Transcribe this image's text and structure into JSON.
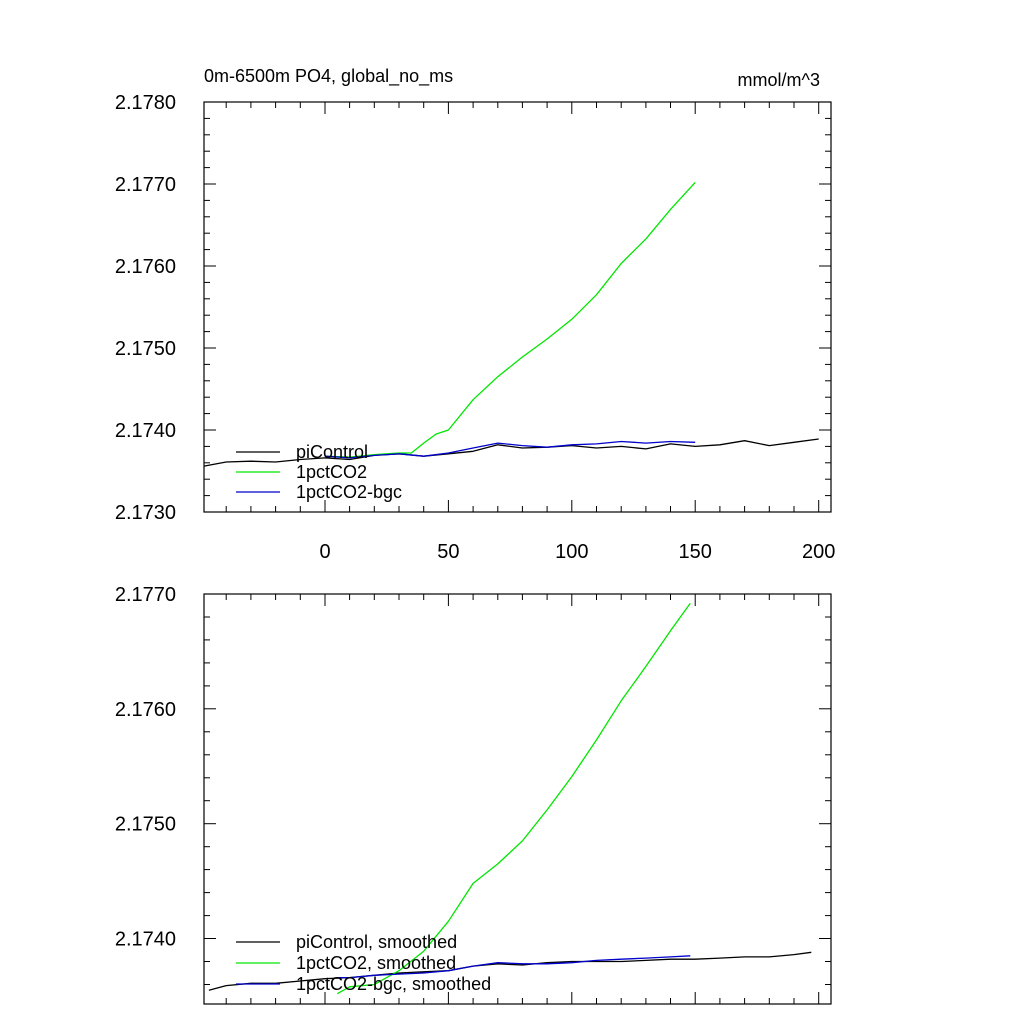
{
  "panels": [
    {
      "title_left": "0m-6500m PO4, global_no_ms",
      "title_right": "mmol/m^3",
      "chart_data": {
        "type": "line",
        "title": "0m-6500m PO4, global_no_ms",
        "units": "mmol/m^3",
        "xlim": [
          -49,
          205
        ],
        "ylim": [
          2.173,
          2.178
        ],
        "x_ticks": [
          0,
          50,
          100,
          150,
          200
        ],
        "x_tick_labels": [
          "0",
          "50",
          "100",
          "150",
          "200"
        ],
        "y_ticks": [
          2.173,
          2.174,
          2.175,
          2.176,
          2.177,
          2.178
        ],
        "y_tick_labels": [
          "2.1730",
          "2.1740",
          "2.1750",
          "2.1760",
          "2.1770",
          "2.1780"
        ],
        "grid": false,
        "legend_position": "lower-left",
        "series": [
          {
            "name": "piControl",
            "color": "#000000",
            "x": [
              -49,
              -40,
              -30,
              -20,
              -10,
              0,
              10,
              20,
              30,
              40,
              50,
              60,
              70,
              80,
              90,
              100,
              110,
              120,
              130,
              140,
              150,
              160,
              170,
              180,
              190,
              200
            ],
            "values": [
              2.17356,
              2.17361,
              2.17362,
              2.17361,
              2.17364,
              2.17366,
              2.17364,
              2.17369,
              2.17371,
              2.17368,
              2.17371,
              2.17374,
              2.17382,
              2.17378,
              2.17379,
              2.17381,
              2.17378,
              2.1738,
              2.17377,
              2.17383,
              2.1738,
              2.17382,
              2.17387,
              2.17381,
              2.17385,
              2.17389
            ]
          },
          {
            "name": "1pctCO2",
            "color": "#00e600",
            "x": [
              0,
              10,
              20,
              30,
              35,
              40,
              45,
              50,
              60,
              70,
              80,
              90,
              100,
              110,
              120,
              130,
              140,
              150
            ],
            "values": [
              2.17368,
              2.17367,
              2.1737,
              2.17372,
              2.17372,
              2.17384,
              2.17395,
              2.174,
              2.17437,
              2.17465,
              2.17489,
              2.17511,
              2.17535,
              2.17565,
              2.17603,
              2.17633,
              2.17669,
              2.17702
            ]
          },
          {
            "name": "1pctCO2-bgc",
            "color": "#0000cc",
            "x": [
              0,
              10,
              20,
              30,
              40,
              50,
              60,
              70,
              80,
              90,
              100,
              110,
              120,
              130,
              140,
              150
            ],
            "values": [
              2.17368,
              2.17366,
              2.17369,
              2.17371,
              2.17368,
              2.17372,
              2.17378,
              2.17384,
              2.17381,
              2.17379,
              2.17382,
              2.17383,
              2.17386,
              2.17384,
              2.17386,
              2.17385
            ]
          }
        ]
      }
    },
    {
      "title_left": "",
      "title_right": "",
      "chart_data": {
        "type": "line",
        "xlim": [
          -49,
          205
        ],
        "ylim": [
          2.17343,
          2.177
        ],
        "x_ticks": [
          0,
          50,
          100,
          150,
          200
        ],
        "x_tick_labels": [],
        "y_ticks": [
          2.174,
          2.175,
          2.176,
          2.177
        ],
        "y_tick_labels": [
          "2.1740",
          "2.1750",
          "2.1760",
          "2.1770"
        ],
        "grid": false,
        "legend_position": "lower-left",
        "series": [
          {
            "name": "piControl, smoothed",
            "color": "#000000",
            "x": [
              -47,
              -40,
              -30,
              -20,
              -10,
              0,
              10,
              20,
              30,
              40,
              50,
              60,
              70,
              80,
              90,
              100,
              110,
              120,
              130,
              140,
              150,
              160,
              170,
              180,
              190,
              197
            ],
            "values": [
              2.17355,
              2.17359,
              2.17361,
              2.17361,
              2.17363,
              2.17365,
              2.17366,
              2.17368,
              2.1737,
              2.17371,
              2.17372,
              2.17376,
              2.17378,
              2.17377,
              2.17379,
              2.1738,
              2.1738,
              2.1738,
              2.17381,
              2.17382,
              2.17382,
              2.17383,
              2.17384,
              2.17384,
              2.17386,
              2.17388
            ]
          },
          {
            "name": "1pctCO2, smoothed",
            "color": "#00e600",
            "x": [
              5,
              10,
              20,
              30,
              40,
              50,
              60,
              70,
              80,
              90,
              100,
              110,
              120,
              130,
              140,
              148
            ],
            "values": [
              2.17352,
              2.17358,
              2.1736,
              2.17372,
              2.17389,
              2.17415,
              2.17448,
              2.17465,
              2.17485,
              2.17512,
              2.17541,
              2.17573,
              2.17607,
              2.17637,
              2.17668,
              2.17692
            ]
          },
          {
            "name": "1pctCO2-bgc, smoothed",
            "color": "#0000cc",
            "x": [
              5,
              10,
              20,
              30,
              40,
              50,
              60,
              70,
              80,
              90,
              100,
              110,
              120,
              130,
              140,
              148
            ],
            "values": [
              2.17366,
              2.17366,
              2.17368,
              2.17369,
              2.1737,
              2.17372,
              2.17376,
              2.17379,
              2.17378,
              2.17378,
              2.17379,
              2.17381,
              2.17382,
              2.17383,
              2.17384,
              2.17385
            ]
          }
        ]
      }
    }
  ]
}
